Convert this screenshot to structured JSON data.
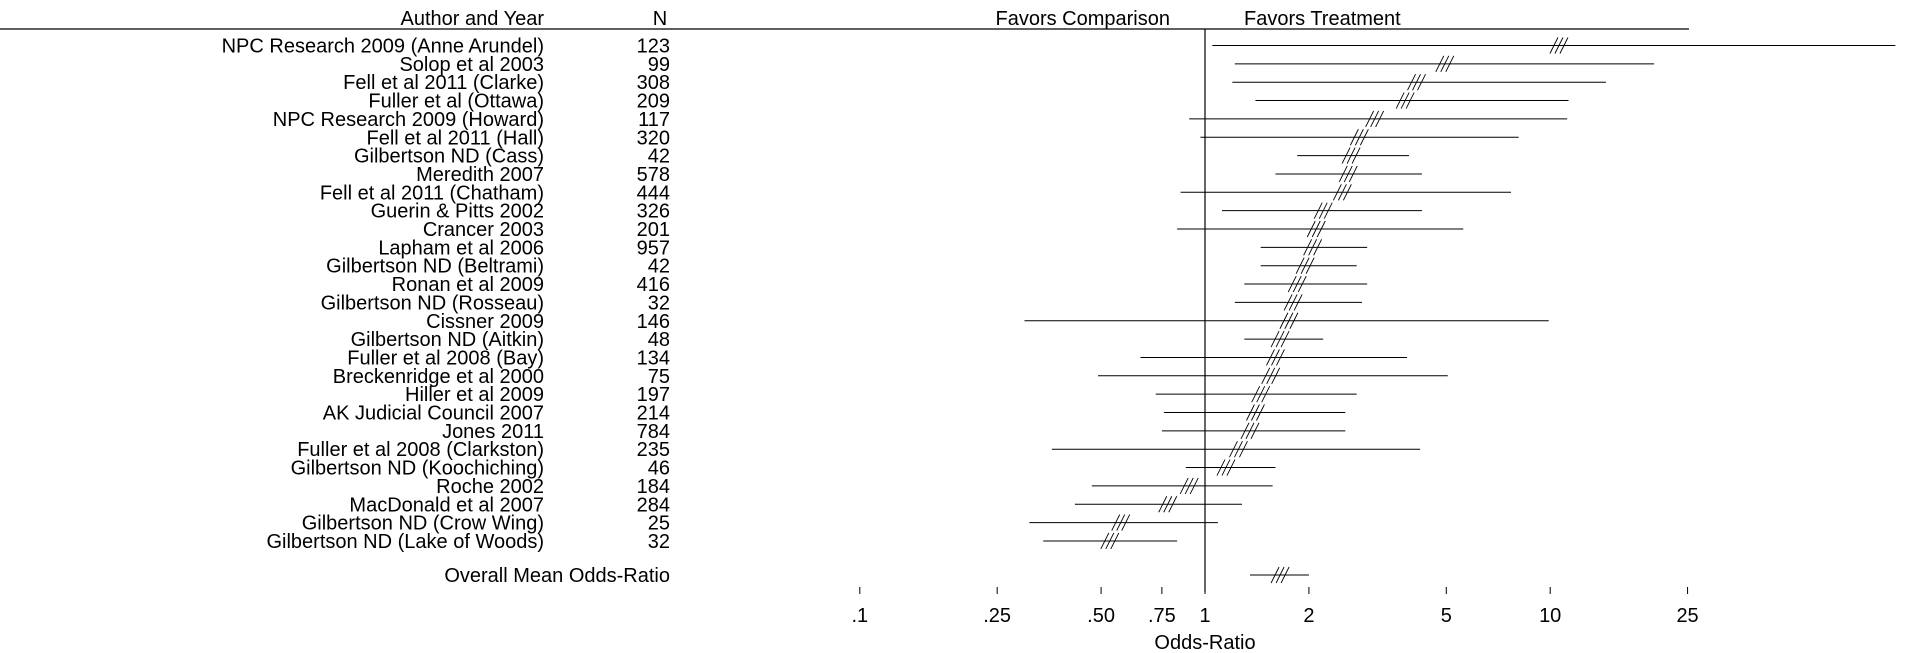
{
  "chart_data": {
    "type": "forest",
    "headers": {
      "author": "Author and Year",
      "n": "N"
    },
    "favors_left": "Favors Comparison",
    "favors_right": "Favors Treatment",
    "xlabel": "Odds-Ratio",
    "x_scale": "log",
    "xlim": [
      0.1,
      25
    ],
    "ticks": [
      {
        "value": 0.1,
        "label": ".1"
      },
      {
        "value": 0.25,
        "label": ".25"
      },
      {
        "value": 0.5,
        "label": ".50"
      },
      {
        "value": 0.75,
        "label": ".75"
      },
      {
        "value": 1,
        "label": "1"
      },
      {
        "value": 2,
        "label": "2"
      },
      {
        "value": 5,
        "label": "5"
      },
      {
        "value": 10,
        "label": "10"
      },
      {
        "value": 25,
        "label": "25"
      }
    ],
    "studies": [
      {
        "label": "NPC Research 2009 (Anne Arundel)",
        "n": "123",
        "or": 10.6,
        "low": 1.05,
        "high": 100
      },
      {
        "label": "Solop et al 2003",
        "n": "99",
        "or": 4.95,
        "low": 1.22,
        "high": 20
      },
      {
        "label": "Fell et al 2011 (Clarke)",
        "n": "308",
        "or": 4.1,
        "low": 1.2,
        "high": 14.5
      },
      {
        "label": "Fuller et al (Ottawa)",
        "n": "209",
        "or": 3.8,
        "low": 1.4,
        "high": 11.3
      },
      {
        "label": "NPC Research 2009 (Howard)",
        "n": "117",
        "or": 3.1,
        "low": 0.9,
        "high": 11.2
      },
      {
        "label": "Fell et al 2011 (Hall)",
        "n": "320",
        "or": 2.8,
        "low": 0.97,
        "high": 8.1
      },
      {
        "label": "Gilbertson ND (Cass)",
        "n": "42",
        "or": 2.65,
        "low": 1.85,
        "high": 3.9
      },
      {
        "label": "Meredith 2007",
        "n": "578",
        "or": 2.6,
        "low": 1.6,
        "high": 4.25
      },
      {
        "label": "Fell et al 2011 (Chatham)",
        "n": "444",
        "or": 2.5,
        "low": 0.85,
        "high": 7.7
      },
      {
        "label": "Guerin & Pitts 2002",
        "n": "326",
        "or": 2.2,
        "low": 1.12,
        "high": 4.25
      },
      {
        "label": "Crancer 2003",
        "n": "201",
        "or": 2.1,
        "low": 0.83,
        "high": 5.6
      },
      {
        "label": "Lapham et al 2006",
        "n": "957",
        "or": 2.05,
        "low": 1.45,
        "high": 2.95
      },
      {
        "label": "Gilbertson ND (Beltrami)",
        "n": "42",
        "or": 1.95,
        "low": 1.45,
        "high": 2.75
      },
      {
        "label": "Ronan et al 2009",
        "n": "416",
        "or": 1.85,
        "low": 1.3,
        "high": 2.95
      },
      {
        "label": "Gilbertson ND (Rosseau)",
        "n": "32",
        "or": 1.8,
        "low": 1.22,
        "high": 2.85
      },
      {
        "label": "Cissner 2009",
        "n": "146",
        "or": 1.75,
        "low": 0.3,
        "high": 9.9
      },
      {
        "label": "Gilbertson ND (Aitkin)",
        "n": "48",
        "or": 1.65,
        "low": 1.3,
        "high": 2.2
      },
      {
        "label": "Fuller et al 2008 (Bay)",
        "n": "134",
        "or": 1.6,
        "low": 0.65,
        "high": 3.85
      },
      {
        "label": "Breckenridge et al 2000",
        "n": "75",
        "or": 1.55,
        "low": 0.49,
        "high": 5.05
      },
      {
        "label": "Hiller et al 2009",
        "n": "197",
        "or": 1.45,
        "low": 0.72,
        "high": 2.75
      },
      {
        "label": "AK Judicial Council 2007",
        "n": "214",
        "or": 1.4,
        "low": 0.76,
        "high": 2.55
      },
      {
        "label": "Jones 2011",
        "n": "784",
        "or": 1.35,
        "low": 0.75,
        "high": 2.55
      },
      {
        "label": "Fuller et al 2008 (Clarkston)",
        "n": "235",
        "or": 1.25,
        "low": 0.36,
        "high": 4.2
      },
      {
        "label": "Gilbertson ND (Koochiching)",
        "n": "46",
        "or": 1.15,
        "low": 0.88,
        "high": 1.6
      },
      {
        "label": "Roche 2002",
        "n": "184",
        "or": 0.9,
        "low": 0.47,
        "high": 1.57
      },
      {
        "label": "MacDonald et al 2007",
        "n": "284",
        "or": 0.78,
        "low": 0.42,
        "high": 1.28
      },
      {
        "label": "Gilbertson ND (Crow Wing)",
        "n": "25",
        "or": 0.57,
        "low": 0.31,
        "high": 1.09
      },
      {
        "label": "Gilbertson ND (Lake of Woods)",
        "n": "32",
        "or": 0.53,
        "low": 0.34,
        "high": 0.83
      }
    ],
    "overall": {
      "label": "Overall Mean Odds-Ratio",
      "or": 1.65,
      "low": 1.35,
      "high": 2.0
    }
  }
}
